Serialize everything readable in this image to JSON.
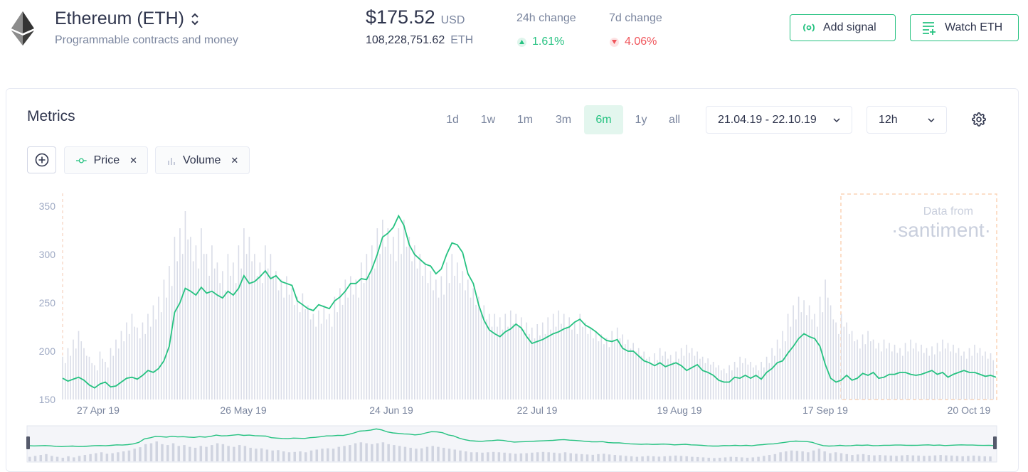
{
  "header": {
    "asset_name": "Ethereum (ETH)",
    "description": "Programmable contracts and money",
    "price": "$175.52",
    "price_currency": "USD",
    "amount": "108,228,751.62",
    "amount_currency": "ETH",
    "change_24h_label": "24h change",
    "change_24h_value": "1.61%",
    "change_7d_label": "7d change",
    "change_7d_value": "4.06%",
    "add_signal_label": "Add signal",
    "watch_label": "Watch ETH"
  },
  "metrics": {
    "title": "Metrics",
    "ranges": [
      "1d",
      "1w",
      "1m",
      "3m",
      "6m",
      "1y",
      "all"
    ],
    "active_range": "6m",
    "date_range": "21.04.19 - 22.10.19",
    "interval": "12h",
    "chips": {
      "price": "Price",
      "volume": "Volume"
    }
  },
  "watermark": {
    "line1": "Data from",
    "line2": "·santiment·"
  },
  "colors": {
    "accent": "#26c281",
    "down": "#f0555b",
    "volume": "#dadde8"
  },
  "icons": [
    "ethereum-logo-icon",
    "sort-icon",
    "signal-icon",
    "watchlist-icon",
    "chevron-down-icon",
    "gear-icon",
    "plus-circle-icon",
    "price-line-icon",
    "volume-bars-icon",
    "close-icon"
  ],
  "chart_data": {
    "type": "line",
    "y_ticks": [
      "350",
      "300",
      "250",
      "200",
      "150"
    ],
    "ylim": [
      150,
      350
    ],
    "x_ticks": [
      "27 Apr 19",
      "26 May 19",
      "24 Jun 19",
      "22 Jul 19",
      "19 Aug 19",
      "17 Sep 19",
      "20 Oct 19"
    ],
    "series": [
      {
        "name": "Price",
        "values": [
          172,
          169,
          171,
          173,
          170,
          165,
          162,
          166,
          168,
          163,
          164,
          168,
          172,
          173,
          171,
          175,
          180,
          178,
          182,
          190,
          205,
          240,
          250,
          265,
          262,
          258,
          266,
          260,
          262,
          258,
          255,
          262,
          258,
          265,
          278,
          270,
          272,
          277,
          283,
          275,
          278,
          272,
          270,
          268,
          252,
          248,
          244,
          242,
          248,
          246,
          244,
          252,
          256,
          262,
          270,
          270,
          275,
          274,
          285,
          300,
          318,
          322,
          328,
          340,
          330,
          310,
          300,
          295,
          290,
          288,
          280,
          285,
          300,
          312,
          310,
          302,
          280,
          270,
          248,
          232,
          222,
          218,
          215,
          220,
          223,
          228,
          224,
          215,
          208,
          210,
          212,
          215,
          218,
          220,
          223,
          225,
          230,
          233,
          227,
          224,
          220,
          215,
          211,
          210,
          212,
          203,
          200,
          200,
          195,
          190,
          188,
          185,
          188,
          184,
          186,
          188,
          185,
          180,
          183,
          186,
          180,
          178,
          175,
          170,
          168,
          168,
          173,
          172,
          175,
          172,
          175,
          171,
          178,
          182,
          188,
          190,
          198,
          205,
          213,
          218,
          215,
          213,
          205,
          186,
          172,
          168,
          170,
          175,
          170,
          172,
          177,
          175,
          178,
          172,
          173,
          176,
          176,
          178,
          178,
          176,
          175,
          176,
          178,
          180,
          176,
          178,
          173,
          176,
          178,
          180,
          178,
          178,
          176,
          174,
          175,
          173
        ]
      },
      {
        "name": "Volume",
        "values": [
          0.25,
          0.3,
          0.35,
          0.4,
          0.3,
          0.25,
          0.2,
          0.28,
          0.22,
          0.3,
          0.35,
          0.4,
          0.45,
          0.5,
          0.42,
          0.45,
          0.5,
          0.55,
          0.6,
          0.7,
          0.78,
          0.95,
          1.0,
          1.1,
          0.95,
          0.9,
          1.0,
          0.85,
          0.9,
          0.8,
          0.75,
          0.85,
          0.8,
          0.9,
          1.0,
          0.95,
          0.85,
          0.8,
          0.9,
          0.85,
          0.75,
          0.7,
          0.72,
          0.65,
          0.6,
          0.62,
          0.55,
          0.5,
          0.52,
          0.55,
          0.5,
          0.6,
          0.65,
          0.7,
          0.72,
          0.7,
          0.8,
          0.85,
          0.9,
          1.0,
          1.05,
          1.0,
          0.95,
          1.0,
          1.05,
          0.95,
          0.9,
          0.85,
          0.8,
          0.75,
          0.7,
          0.72,
          0.8,
          0.85,
          0.8,
          0.75,
          0.7,
          0.65,
          0.6,
          0.55,
          0.5,
          0.5,
          0.48,
          0.5,
          0.52,
          0.5,
          0.48,
          0.45,
          0.42,
          0.44,
          0.45,
          0.48,
          0.5,
          0.52,
          0.5,
          0.48,
          0.45,
          0.5,
          0.45,
          0.42,
          0.4,
          0.38,
          0.36,
          0.4,
          0.42,
          0.38,
          0.35,
          0.33,
          0.3,
          0.28,
          0.25,
          0.27,
          0.3,
          0.28,
          0.26,
          0.28,
          0.3,
          0.32,
          0.3,
          0.28,
          0.25,
          0.24,
          0.22,
          0.2,
          0.18,
          0.2,
          0.22,
          0.25,
          0.24,
          0.22,
          0.2,
          0.22,
          0.25,
          0.3,
          0.35,
          0.4,
          0.5,
          0.55,
          0.6,
          0.58,
          0.55,
          0.5,
          0.6,
          0.7,
          0.55,
          0.45,
          0.5,
          0.45,
          0.4,
          0.35,
          0.38,
          0.4,
          0.35,
          0.33,
          0.35,
          0.33,
          0.32,
          0.3,
          0.33,
          0.35,
          0.33,
          0.32,
          0.3,
          0.31,
          0.33,
          0.35,
          0.33,
          0.32,
          0.3,
          0.28,
          0.3,
          0.32,
          0.3,
          0.28,
          0.27
        ]
      }
    ]
  }
}
